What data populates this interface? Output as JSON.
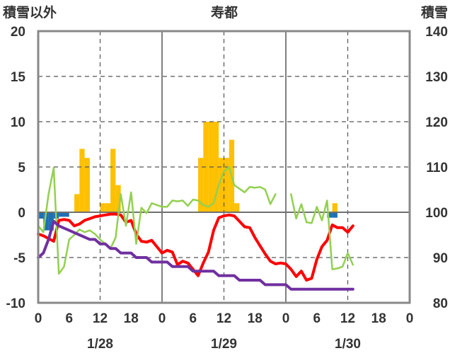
{
  "chart_data": {
    "type": "bar+line",
    "title": "寿都",
    "left_axis_title": "積雪以外",
    "right_axis_title": "積雪",
    "left_ylim": [
      -10,
      20
    ],
    "left_yticks": [
      "20",
      "15",
      "10",
      "5",
      "0",
      "-5",
      "-10"
    ],
    "right_ylim": [
      80,
      140
    ],
    "right_yticks": [
      "140",
      "130",
      "120",
      "110",
      "100",
      "90",
      "80"
    ],
    "x_hours_range": [
      0,
      72
    ],
    "x_tick_labels": [
      "0",
      "6",
      "12",
      "18",
      "0",
      "6",
      "12",
      "18",
      "0",
      "6",
      "12",
      "18",
      "0"
    ],
    "date_labels": [
      "1/28",
      "1/29",
      "1/30"
    ],
    "grid": true,
    "colors": {
      "precip_bar": "#ffc000",
      "negative_bar": "#1f6fb4",
      "temperature": "#ff0000",
      "wind": "#92d050",
      "snow_depth": "#7030a0",
      "grid": "#555555",
      "frame": "#888888"
    },
    "precipitation_bars": [
      {
        "t": 7.5,
        "v": 2
      },
      {
        "t": 8.5,
        "v": 7
      },
      {
        "t": 9.5,
        "v": 6
      },
      {
        "t": 12.5,
        "v": 1
      },
      {
        "t": 13.5,
        "v": 1
      },
      {
        "t": 14.5,
        "v": 7
      },
      {
        "t": 15.5,
        "v": 3
      },
      {
        "t": 31.5,
        "v": 6
      },
      {
        "t": 32.5,
        "v": 10
      },
      {
        "t": 33.5,
        "v": 10
      },
      {
        "t": 34.5,
        "v": 10
      },
      {
        "t": 35.5,
        "v": 6
      },
      {
        "t": 36.5,
        "v": 6
      },
      {
        "t": 37.5,
        "v": 8
      },
      {
        "t": 38.5,
        "v": 1
      },
      {
        "t": 57.5,
        "v": 1
      }
    ],
    "negative_bars": [
      {
        "t": 0.5,
        "v": -0.7
      },
      {
        "t": 1.5,
        "v": -2
      },
      {
        "t": 2.5,
        "v": -2
      },
      {
        "t": 3.5,
        "v": -0.7
      },
      {
        "t": 4.5,
        "v": -0.5
      },
      {
        "t": 5.5,
        "v": -0.5
      },
      {
        "t": 56.5,
        "v": -0.6
      },
      {
        "t": 57.5,
        "v": -0.6
      }
    ],
    "series": [
      {
        "color_key": "temperature",
        "segments": [
          [
            [
              0,
              -2.4
            ],
            [
              1,
              -2.6
            ],
            [
              2,
              -2.9
            ],
            [
              3,
              -3.2
            ],
            [
              4,
              -0.9
            ],
            [
              5,
              -0.8
            ],
            [
              6,
              -0.9
            ],
            [
              7,
              -1.5
            ],
            [
              8,
              -1.3
            ],
            [
              9,
              -0.9
            ],
            [
              10,
              -0.7
            ],
            [
              11,
              -0.5
            ],
            [
              12,
              -0.4
            ],
            [
              13,
              -0.3
            ],
            [
              14,
              -0.2
            ],
            [
              15,
              -0.2
            ],
            [
              16,
              -0.3
            ],
            [
              17,
              -1.1
            ],
            [
              18,
              -0.9
            ],
            [
              19,
              -2.4
            ],
            [
              20,
              -3.2
            ],
            [
              21,
              -3.3
            ],
            [
              22,
              -3.1
            ],
            [
              23,
              -3.8
            ],
            [
              24,
              -4.5
            ],
            [
              25,
              -4.2
            ],
            [
              26,
              -4.4
            ],
            [
              27,
              -5.8
            ],
            [
              28,
              -5.4
            ],
            [
              29,
              -5.6
            ],
            [
              30,
              -6.3
            ],
            [
              31,
              -7.0
            ],
            [
              32,
              -5.6
            ],
            [
              33,
              -4.4
            ],
            [
              34,
              -2.0
            ],
            [
              35,
              -0.6
            ],
            [
              36,
              -0.4
            ],
            [
              37,
              -0.3
            ],
            [
              38,
              -0.4
            ],
            [
              39,
              -1.0
            ],
            [
              40,
              -1.6
            ],
            [
              41,
              -1.7
            ],
            [
              42,
              -2.8
            ],
            [
              43,
              -3.7
            ],
            [
              44,
              -4.6
            ],
            [
              45,
              -5.4
            ],
            [
              46,
              -5.7
            ],
            [
              47,
              -5.6
            ],
            [
              48,
              -5.7
            ],
            [
              49,
              -6.3
            ],
            [
              50,
              -7.1
            ],
            [
              51,
              -6.5
            ],
            [
              52,
              -7.5
            ],
            [
              53,
              -7.3
            ],
            [
              54,
              -5.2
            ],
            [
              55,
              -3.8
            ],
            [
              56,
              -3.1
            ],
            [
              57,
              -1.4
            ],
            [
              58,
              -1.7
            ],
            [
              59,
              -1.7
            ],
            [
              60,
              -2.2
            ],
            [
              61,
              -1.5
            ]
          ]
        ]
      },
      {
        "color_key": "wind",
        "segments": [
          [
            [
              0,
              -1.5
            ],
            [
              1,
              -2.2
            ],
            [
              2,
              2.0
            ],
            [
              3,
              4.9
            ],
            [
              4,
              -6.8
            ],
            [
              5,
              -6.0
            ],
            [
              6,
              -3.0
            ],
            [
              7,
              -2.5
            ],
            [
              8,
              -1.9
            ],
            [
              9,
              -2.2
            ],
            [
              10,
              -2.0
            ],
            [
              11,
              -2.4
            ],
            [
              12,
              -3.0
            ],
            [
              13,
              -3.5
            ],
            [
              14,
              -4.0
            ],
            [
              15,
              -2.8
            ],
            [
              16,
              2.0
            ],
            [
              17,
              -1.5
            ],
            [
              18,
              2.2
            ],
            [
              19,
              -3.5
            ],
            [
              20,
              0.5
            ],
            [
              21,
              -0.1
            ],
            [
              22,
              1.0
            ],
            [
              23,
              0.8
            ],
            [
              24,
              0.6
            ],
            [
              25,
              0.6
            ],
            [
              26,
              1.3
            ],
            [
              27,
              1.2
            ],
            [
              28,
              1.3
            ],
            [
              29,
              0.7
            ],
            [
              30,
              1.4
            ],
            [
              31,
              1.3
            ],
            [
              32,
              0.8
            ],
            [
              33,
              0.6
            ],
            [
              34,
              1.0
            ],
            [
              35,
              3.0
            ],
            [
              36,
              4.5
            ],
            [
              37,
              5.0
            ],
            [
              38,
              3.0
            ],
            [
              39,
              2.6
            ],
            [
              40,
              2.2
            ],
            [
              41,
              2.8
            ],
            [
              42,
              2.7
            ],
            [
              43,
              2.8
            ],
            [
              44,
              2.5
            ],
            [
              45,
              0.9
            ],
            [
              46,
              2.0
            ]
          ],
          [
            [
              49,
              2.0
            ],
            [
              50,
              -0.7
            ],
            [
              51,
              0.9
            ],
            [
              52,
              -1.1
            ],
            [
              53,
              -1.2
            ],
            [
              54,
              0.6
            ],
            [
              55,
              -0.9
            ],
            [
              56,
              1.3
            ],
            [
              57,
              -6.3
            ],
            [
              58,
              -6.2
            ],
            [
              59,
              -6.0
            ],
            [
              60,
              -4.5
            ],
            [
              61,
              -5.8
            ]
          ]
        ]
      },
      {
        "color_key": "snow_depth",
        "axis": "right",
        "segments": [
          [
            [
              0,
              90
            ],
            [
              1,
              91
            ],
            [
              2,
              94
            ],
            [
              3,
              98
            ],
            [
              4,
              97
            ],
            [
              5,
              96.5
            ],
            [
              6,
              96
            ],
            [
              7,
              95.5
            ],
            [
              8,
              95
            ],
            [
              9,
              94.5
            ],
            [
              10,
              94
            ],
            [
              11,
              94
            ],
            [
              12,
              93
            ],
            [
              13,
              93
            ],
            [
              14,
              92
            ],
            [
              15,
              92
            ],
            [
              16,
              91
            ],
            [
              17,
              91
            ],
            [
              18,
              91
            ],
            [
              19,
              90
            ],
            [
              20,
              90
            ],
            [
              21,
              90
            ],
            [
              22,
              89
            ],
            [
              23,
              89
            ],
            [
              24,
              89
            ],
            [
              25,
              89
            ],
            [
              26,
              88
            ],
            [
              27,
              88
            ],
            [
              28,
              88
            ],
            [
              29,
              88
            ],
            [
              30,
              87
            ],
            [
              31,
              87
            ],
            [
              32,
              87
            ],
            [
              33,
              87
            ],
            [
              34,
              87
            ],
            [
              35,
              86
            ],
            [
              36,
              86
            ],
            [
              37,
              86
            ],
            [
              38,
              86
            ],
            [
              39,
              85
            ],
            [
              40,
              85
            ],
            [
              41,
              85
            ],
            [
              42,
              85
            ],
            [
              43,
              85
            ],
            [
              44,
              84
            ],
            [
              45,
              84
            ],
            [
              46,
              84
            ],
            [
              47,
              84
            ],
            [
              48,
              84
            ],
            [
              49,
              83
            ],
            [
              50,
              83
            ],
            [
              51,
              83
            ],
            [
              52,
              83
            ],
            [
              53,
              83
            ],
            [
              54,
              83
            ],
            [
              55,
              83
            ],
            [
              56,
              83
            ],
            [
              57,
              83
            ],
            [
              58,
              83
            ],
            [
              59,
              83
            ],
            [
              60,
              83
            ],
            [
              61,
              83
            ]
          ]
        ]
      }
    ]
  }
}
